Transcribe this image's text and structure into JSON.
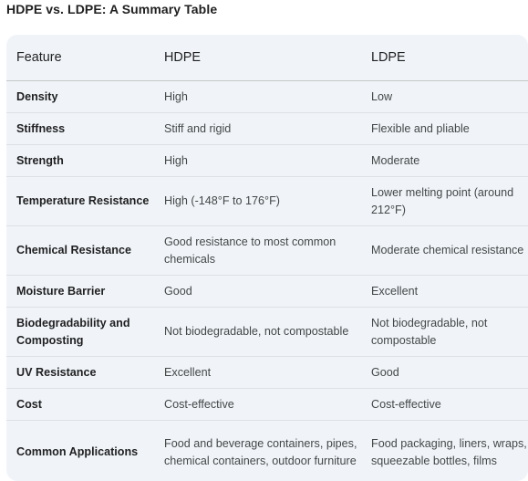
{
  "title": "HDPE vs. LDPE: A Summary Table",
  "table": {
    "headers": [
      "Feature",
      "HDPE",
      "LDPE"
    ],
    "rows": [
      {
        "feature": "Density",
        "hdpe": "High",
        "ldpe": "Low"
      },
      {
        "feature": "Stiffness",
        "hdpe": "Stiff and rigid",
        "ldpe": "Flexible and pliable"
      },
      {
        "feature": "Strength",
        "hdpe": "High",
        "ldpe": "Moderate"
      },
      {
        "feature": "Temperature Resistance",
        "hdpe": "High (-148°F to 176°F)",
        "ldpe": "Lower melting point (around 212°F)"
      },
      {
        "feature": "Chemical Resistance",
        "hdpe": "Good resistance to most common chemicals",
        "ldpe": "Moderate chemical resistance"
      },
      {
        "feature": "Moisture Barrier",
        "hdpe": "Good",
        "ldpe": "Excellent"
      },
      {
        "feature": "Biodegradability and Composting",
        "hdpe": "Not biodegradable, not compostable",
        "ldpe": "Not biodegradable, not compostable"
      },
      {
        "feature": "UV Resistance",
        "hdpe": "Excellent",
        "ldpe": "Good"
      },
      {
        "feature": "Cost",
        "hdpe": "Cost-effective",
        "ldpe": "Cost-effective"
      },
      {
        "feature": "Common Applications",
        "hdpe": "Food and beverage containers, pipes, chemical containers, outdoor furniture",
        "ldpe": "Food packaging, liners, wraps, squeezable bottles, films"
      }
    ]
  }
}
